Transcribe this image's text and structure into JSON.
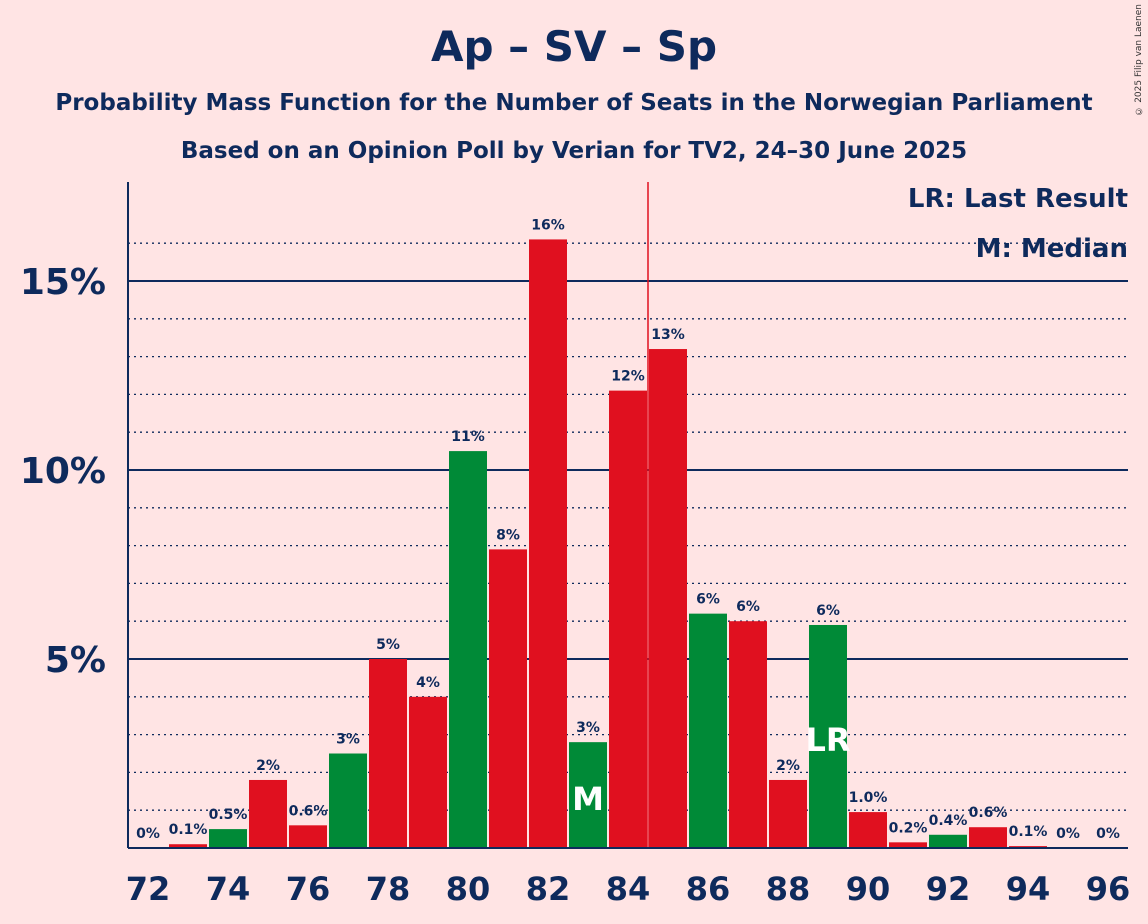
{
  "title": "Ap – SV – Sp",
  "subtitle1": "Probability Mass Function for the Number of Seats in the Norwegian Parliament",
  "subtitle2": "Based on an Opinion Poll by Verian for TV2, 24–30 June 2025",
  "copyright": "© 2025 Filip van Laenen",
  "legend": {
    "last_result": "LR: Last Result",
    "median": "M: Median"
  },
  "colors": {
    "red": "#e0101f",
    "green": "#008a37",
    "navy": "#0e2a5c",
    "background": "#ffe4e4"
  },
  "chart_data": {
    "type": "bar",
    "x_ticks": [
      "72",
      "74",
      "76",
      "78",
      "80",
      "82",
      "84",
      "86",
      "88",
      "90",
      "92",
      "94",
      "96"
    ],
    "y_ticks": [
      "5%",
      "10%",
      "15%"
    ],
    "ylim": [
      0,
      17.6
    ],
    "majority_line": 84.5,
    "median_seat": 83,
    "last_result_seat": 89,
    "median_marker": "M",
    "last_result_marker": "LR",
    "bars": [
      {
        "seat": 72,
        "value": 0,
        "label": "0%",
        "color": "red"
      },
      {
        "seat": 73,
        "value": 0.1,
        "label": "0.1%",
        "color": "red"
      },
      {
        "seat": 74,
        "value": 0.5,
        "label": "0.5%",
        "color": "green"
      },
      {
        "seat": 75,
        "value": 1.8,
        "label": "2%",
        "color": "red"
      },
      {
        "seat": 76,
        "value": 0.6,
        "label": "0.6%",
        "color": "red"
      },
      {
        "seat": 77,
        "value": 2.5,
        "label": "3%",
        "color": "green"
      },
      {
        "seat": 78,
        "value": 5.0,
        "label": "5%",
        "color": "red"
      },
      {
        "seat": 79,
        "value": 4.0,
        "label": "4%",
        "color": "red"
      },
      {
        "seat": 80,
        "value": 10.5,
        "label": "11%",
        "color": "green"
      },
      {
        "seat": 81,
        "value": 7.9,
        "label": "8%",
        "color": "red"
      },
      {
        "seat": 82,
        "value": 16.1,
        "label": "16%",
        "color": "red"
      },
      {
        "seat": 83,
        "value": 2.8,
        "label": "3%",
        "color": "green"
      },
      {
        "seat": 84,
        "value": 12.1,
        "label": "12%",
        "color": "red"
      },
      {
        "seat": 85,
        "value": 13.2,
        "label": "13%",
        "color": "red"
      },
      {
        "seat": 86,
        "value": 6.2,
        "label": "6%",
        "color": "green"
      },
      {
        "seat": 87,
        "value": 6.0,
        "label": "6%",
        "color": "red"
      },
      {
        "seat": 88,
        "value": 1.8,
        "label": "2%",
        "color": "red"
      },
      {
        "seat": 89,
        "value": 5.9,
        "label": "6%",
        "color": "green"
      },
      {
        "seat": 90,
        "value": 0.95,
        "label": "1.0%",
        "color": "red"
      },
      {
        "seat": 91,
        "value": 0.15,
        "label": "0.2%",
        "color": "red"
      },
      {
        "seat": 92,
        "value": 0.35,
        "label": "0.4%",
        "color": "green"
      },
      {
        "seat": 93,
        "value": 0.55,
        "label": "0.6%",
        "color": "red"
      },
      {
        "seat": 94,
        "value": 0.05,
        "label": "0.1%",
        "color": "red"
      },
      {
        "seat": 95,
        "value": 0,
        "label": "0%",
        "color": "green"
      },
      {
        "seat": 96,
        "value": 0,
        "label": "0%",
        "color": "red"
      }
    ]
  }
}
